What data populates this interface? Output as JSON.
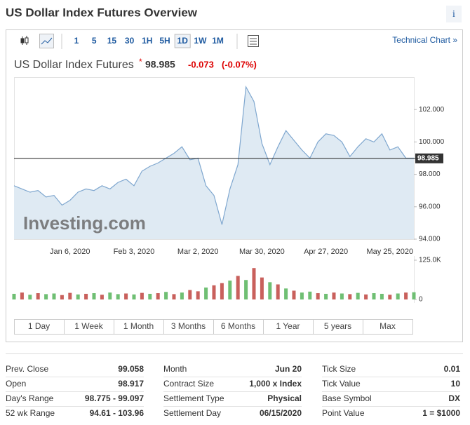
{
  "header": {
    "title": "US Dollar Index Futures Overview",
    "info": "i"
  },
  "toolbar": {
    "intervals": [
      "1",
      "5",
      "15",
      "30",
      "1H",
      "5H",
      "1D",
      "1W",
      "1M"
    ],
    "active_index": 6,
    "technical_link": "Technical Chart »"
  },
  "chart_data": [
    {
      "type": "line",
      "title": "US Dollar Index Futures",
      "last_price": 98.985,
      "change": "-0.073",
      "change_percent": "(-0.07%)",
      "watermark": "Investing.com",
      "categories": [
        null,
        null,
        null,
        null,
        null,
        null,
        null,
        "Jan 6, 2020",
        null,
        null,
        null,
        null,
        null,
        null,
        null,
        "Feb 3, 2020",
        null,
        null,
        null,
        null,
        null,
        null,
        null,
        "Mar 2, 2020",
        null,
        null,
        null,
        null,
        null,
        null,
        null,
        "Mar 30, 2020",
        null,
        null,
        null,
        null,
        null,
        null,
        null,
        "Apr 27, 2020",
        null,
        null,
        null,
        null,
        null,
        null,
        null,
        "May 25, 2020",
        null,
        null,
        null
      ],
      "series": [
        {
          "color": "#7fa7cf",
          "fill": "#dfeaf3",
          "values": [
            97.3,
            97.1,
            96.9,
            97.0,
            96.6,
            96.7,
            96.1,
            96.4,
            96.9,
            97.1,
            97.0,
            97.3,
            97.1,
            97.5,
            97.7,
            97.3,
            98.2,
            98.5,
            98.7,
            99.0,
            99.3,
            99.7,
            98.9,
            99.0,
            97.3,
            96.7,
            94.9,
            97.1,
            98.6,
            103.4,
            102.5,
            99.9,
            98.6,
            99.7,
            100.7,
            100.1,
            99.5,
            99.0,
            100.0,
            100.5,
            100.4,
            100.0,
            99.1,
            99.7,
            100.2,
            100.0,
            100.5,
            99.5,
            99.7,
            99.0,
            99.0
          ]
        }
      ],
      "ylim": [
        94,
        104
      ],
      "yticks": [
        {
          "value": 94,
          "label": "94.000"
        },
        {
          "value": 96,
          "label": "96.000"
        },
        {
          "value": 98,
          "label": "98.000"
        },
        {
          "value": 100,
          "label": "100.000"
        },
        {
          "value": 102,
          "label": "102.000"
        }
      ]
    },
    {
      "type": "bar",
      "values": [
        18000,
        22000,
        15000,
        20000,
        17000,
        19000,
        14000,
        21000,
        16000,
        18000,
        20000,
        15000,
        22000,
        17000,
        19000,
        16000,
        21000,
        18000,
        20000,
        24000,
        17000,
        22000,
        30000,
        26000,
        38000,
        45000,
        52000,
        60000,
        75000,
        62000,
        100000,
        70000,
        55000,
        48000,
        35000,
        28000,
        22000,
        25000,
        20000,
        18000,
        22000,
        19000,
        17000,
        21000,
        16000,
        20000,
        18000,
        15000,
        19000,
        22000,
        23000
      ],
      "colors": [
        "#6fbf73",
        "#c9605c",
        "#6fbf73",
        "#c9605c",
        "#6fbf73",
        "#6fbf73",
        "#c9605c",
        "#c9605c",
        "#6fbf73",
        "#c9605c",
        "#6fbf73",
        "#c9605c",
        "#6fbf73",
        "#6fbf73",
        "#c9605c",
        "#6fbf73",
        "#c9605c",
        "#6fbf73",
        "#c9605c",
        "#6fbf73",
        "#c9605c",
        "#6fbf73",
        "#c9605c",
        "#c9605c",
        "#6fbf73",
        "#c9605c",
        "#c9605c",
        "#6fbf73",
        "#c9605c",
        "#6fbf73",
        "#c9605c",
        "#c9605c",
        "#6fbf73",
        "#c9605c",
        "#6fbf73",
        "#c9605c",
        "#6fbf73",
        "#6fbf73",
        "#c9605c",
        "#6fbf73",
        "#c9605c",
        "#6fbf73",
        "#c9605c",
        "#6fbf73",
        "#c9605c",
        "#6fbf73",
        "#6fbf73",
        "#c9605c",
        "#6fbf73",
        "#c9605c",
        "#6fbf73"
      ],
      "ylim": [
        0,
        125000
      ],
      "yticks": [
        0,
        {
          "value": 125000,
          "label": "125.0K"
        }
      ]
    }
  ],
  "ranges": [
    "1 Day",
    "1 Week",
    "1 Month",
    "3 Months",
    "6 Months",
    "1 Year",
    "5 years",
    "Max"
  ],
  "stats": {
    "rows": [
      [
        [
          "Prev. Close",
          "99.058"
        ],
        [
          "Month",
          "Jun 20"
        ],
        [
          "Tick Size",
          "0.01"
        ]
      ],
      [
        [
          "Open",
          "98.917"
        ],
        [
          "Contract Size",
          "1,000 x Index"
        ],
        [
          "Tick Value",
          "10"
        ]
      ],
      [
        [
          "Day's Range",
          "98.775 - 99.097"
        ],
        [
          "Settlement Type",
          "Physical"
        ],
        [
          "Base Symbol",
          "DX"
        ]
      ],
      [
        [
          "52 wk Range",
          "94.61 - 103.96"
        ],
        [
          "Settlement Day",
          "06/15/2020"
        ],
        [
          "Point Value",
          "1 = $1000"
        ]
      ]
    ]
  }
}
